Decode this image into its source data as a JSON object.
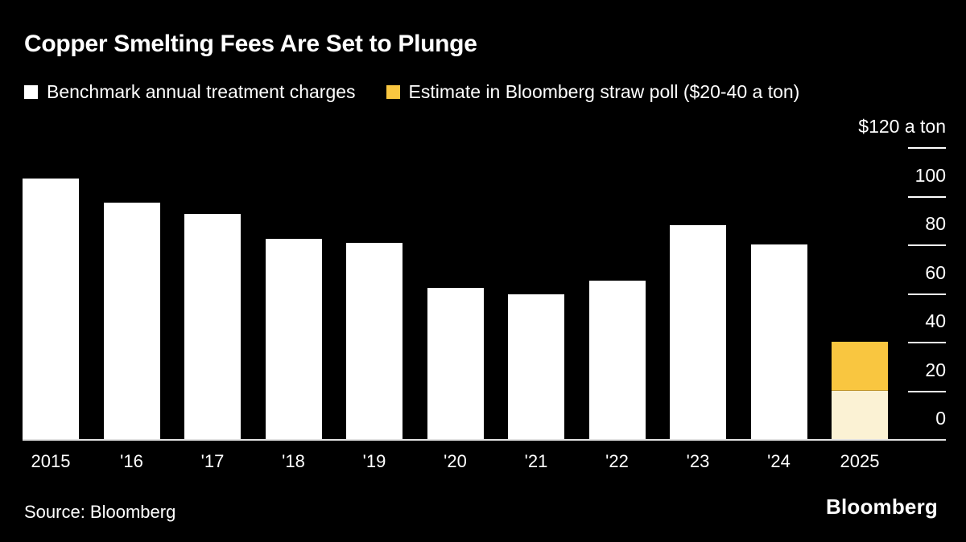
{
  "header": {
    "title": "Copper Smelting Fees Are Set to Plunge"
  },
  "legend": {
    "benchmark": {
      "label": "Benchmark annual treatment charges",
      "color": "#ffffff"
    },
    "estimate": {
      "label": "Estimate in Bloomberg straw poll ($20-40 a ton)",
      "color": "#f9c640"
    }
  },
  "chart_data": {
    "type": "bar",
    "title": "Copper Smelting Fees Are Set to Plunge",
    "categories": [
      "2015",
      "'16",
      "'17",
      "'18",
      "'19",
      "'20",
      "'21",
      "'22",
      "'23",
      "'24",
      "2025"
    ],
    "series": [
      {
        "name": "Benchmark annual treatment charges",
        "color": "#ffffff",
        "values": [
          107,
          97.35,
          92.5,
          82.25,
          80.8,
          62,
          59.5,
          65,
          88,
          80,
          null
        ]
      },
      {
        "name": "Estimate in Bloomberg straw poll ($20-40 a ton)",
        "type": "range-stack",
        "low_color": "#fbf2d4",
        "high_color": "#f9c640",
        "values": [
          null,
          null,
          null,
          null,
          null,
          null,
          null,
          null,
          null,
          null,
          [
            20,
            40
          ]
        ]
      }
    ],
    "ylim": [
      0,
      120
    ],
    "yticks": [
      120,
      100,
      80,
      60,
      40,
      20,
      0
    ],
    "ytick_labels": [
      "$120 a ton",
      "100",
      "80",
      "60",
      "40",
      "20",
      "0"
    ],
    "axis_unit": "$ a ton",
    "grid": false,
    "legend_position": "top"
  },
  "footer": {
    "source": "Source: Bloomberg",
    "brand": "Bloomberg"
  }
}
